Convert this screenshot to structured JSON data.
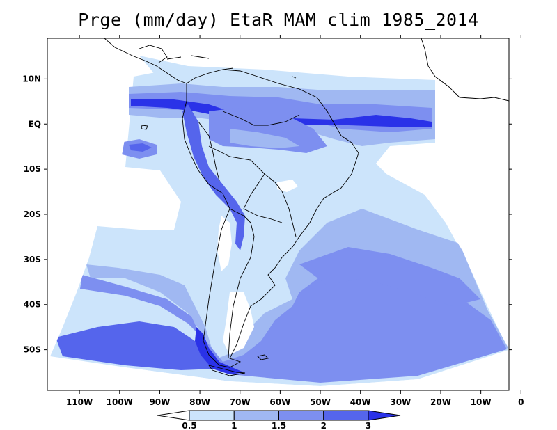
{
  "title": "Prge (mm/day) EtaR MAM clim 1985_2014",
  "map": {
    "type": "filled-contour",
    "variable": "Prge",
    "units": "mm/day",
    "model": "EtaR",
    "season": "MAM",
    "period": "1985_2014",
    "lon_range": [
      -118,
      -3
    ],
    "lat_range": [
      -59,
      19
    ]
  },
  "axes": {
    "lat_ticks": [
      {
        "label": "10N",
        "value": 10
      },
      {
        "label": "EQ",
        "value": 0
      },
      {
        "label": "10S",
        "value": -10
      },
      {
        "label": "20S",
        "value": -20
      },
      {
        "label": "30S",
        "value": -30
      },
      {
        "label": "40S",
        "value": -40
      },
      {
        "label": "50S",
        "value": -50
      }
    ],
    "lon_ticks": [
      {
        "label": "110W",
        "value": -110
      },
      {
        "label": "100W",
        "value": -100
      },
      {
        "label": "90W",
        "value": -90
      },
      {
        "label": "80W",
        "value": -80
      },
      {
        "label": "70W",
        "value": -70
      },
      {
        "label": "60W",
        "value": -60
      },
      {
        "label": "50W",
        "value": -50
      },
      {
        "label": "40W",
        "value": -40
      },
      {
        "label": "30W",
        "value": -30
      },
      {
        "label": "20W",
        "value": -20
      },
      {
        "label": "10W",
        "value": -10
      },
      {
        "label": "0",
        "value": 0
      }
    ]
  },
  "colorbar": {
    "levels": [
      "0.5",
      "1",
      "1.5",
      "2",
      "3"
    ],
    "colors": [
      "#ffffff",
      "#cce4fb",
      "#a0b8f2",
      "#7d8ff0",
      "#5565ec",
      "#2a32e8"
    ]
  }
}
